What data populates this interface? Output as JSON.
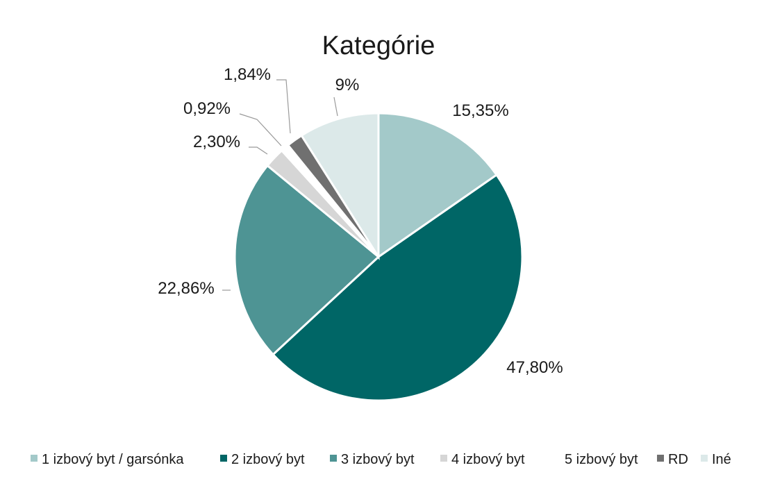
{
  "chart_data": {
    "type": "pie",
    "title": "Kategórie",
    "slices": [
      {
        "name": "1 izbový byt / garsónka",
        "value": 15.35,
        "label": "15,35%",
        "color": "#a3c9c9"
      },
      {
        "name": "2 izbový byt",
        "value": 47.8,
        "label": "47,80%",
        "color": "#006666"
      },
      {
        "name": "3 izbový byt",
        "value": 22.86,
        "label": "22,86%",
        "color": "#4e9494"
      },
      {
        "name": "4 izbový byt",
        "value": 2.3,
        "label": "2,30%",
        "color": "#d6d6d6"
      },
      {
        "name": "5 izbový byt",
        "value": 0.92,
        "label": "0,92%",
        "color": "#ffffff"
      },
      {
        "name": "RD",
        "value": 1.84,
        "label": "1,84%",
        "color": "#707070"
      },
      {
        "name": "Iné",
        "value": 9.0,
        "label": "9%",
        "color": "#dce9e9"
      }
    ],
    "legend_position": "bottom",
    "start_angle": "12 o'clock",
    "direction": "clockwise"
  }
}
